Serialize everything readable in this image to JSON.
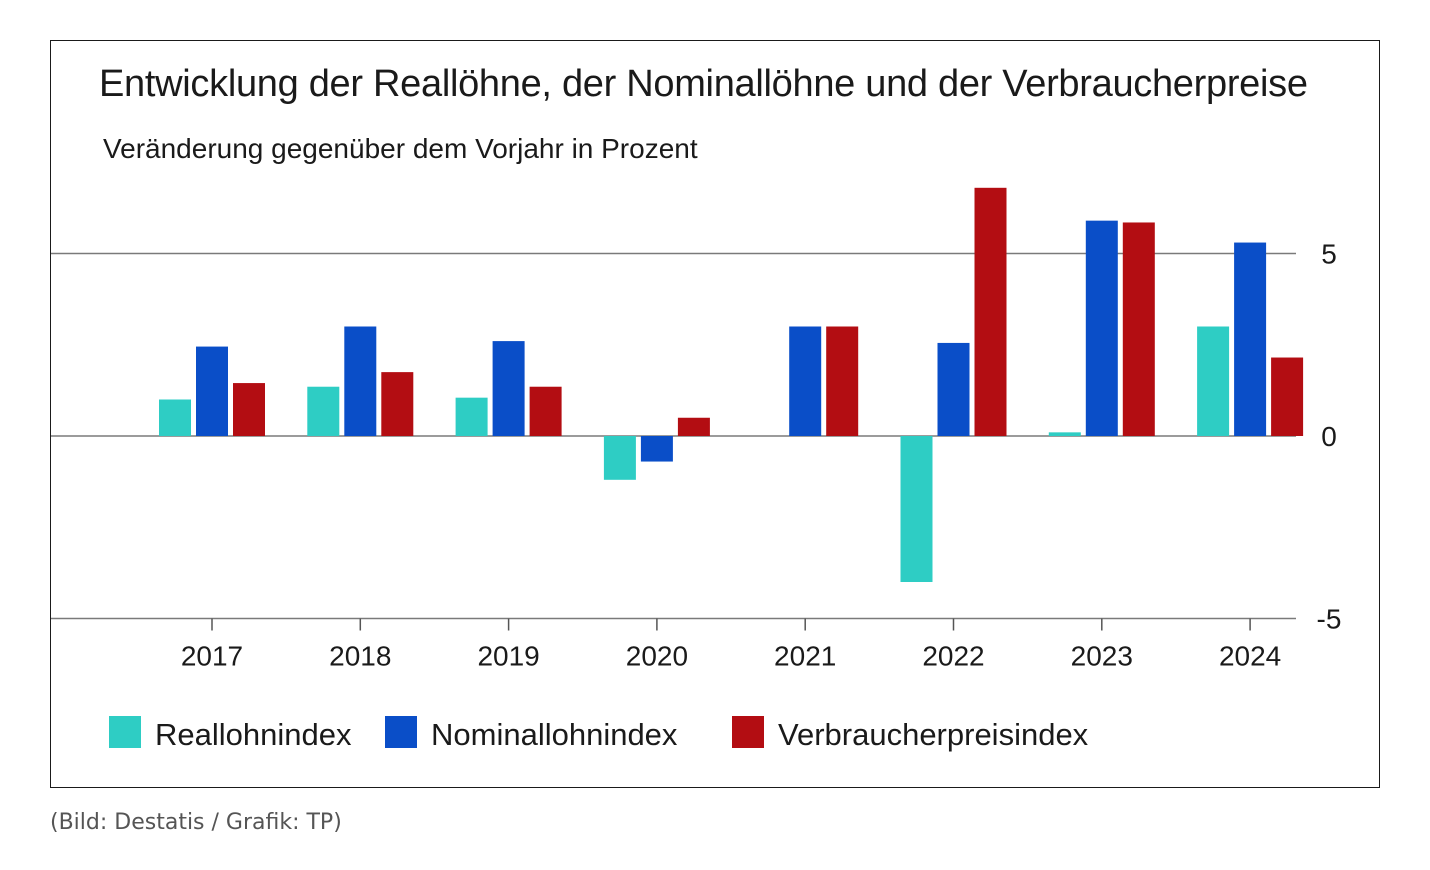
{
  "chart_data": {
    "type": "bar",
    "title": "Entwicklung der Reallöhne, der Nominallöhne und der Verbraucherpreise",
    "subtitle": "Veränderung gegenüber dem Vorjahr in Prozent",
    "categories": [
      "2017",
      "2018",
      "2019",
      "2020",
      "2021",
      "2022",
      "2023",
      "2024"
    ],
    "series": [
      {
        "name": "Reallohnindex",
        "color": "#2ecdc4",
        "values": [
          1.0,
          1.35,
          1.05,
          -1.2,
          0.0,
          -4.0,
          0.1,
          3.0
        ]
      },
      {
        "name": "Nominallohnindex",
        "color": "#0a4ec8",
        "values": [
          2.45,
          3.0,
          2.6,
          -0.7,
          3.0,
          2.55,
          5.9,
          5.3
        ]
      },
      {
        "name": "Verbraucherpreisindex",
        "color": "#b30d12",
        "values": [
          1.45,
          1.75,
          1.35,
          0.5,
          3.0,
          6.8,
          5.85,
          2.15
        ]
      }
    ],
    "ylim": [
      -5,
      5
    ],
    "yticks": [
      "5",
      "0",
      "-5"
    ],
    "ytick_values": [
      5,
      0,
      -5
    ],
    "grid": true,
    "legend_position": "bottom-left"
  },
  "caption": "(Bild: Destatis / Grafik: TP)"
}
